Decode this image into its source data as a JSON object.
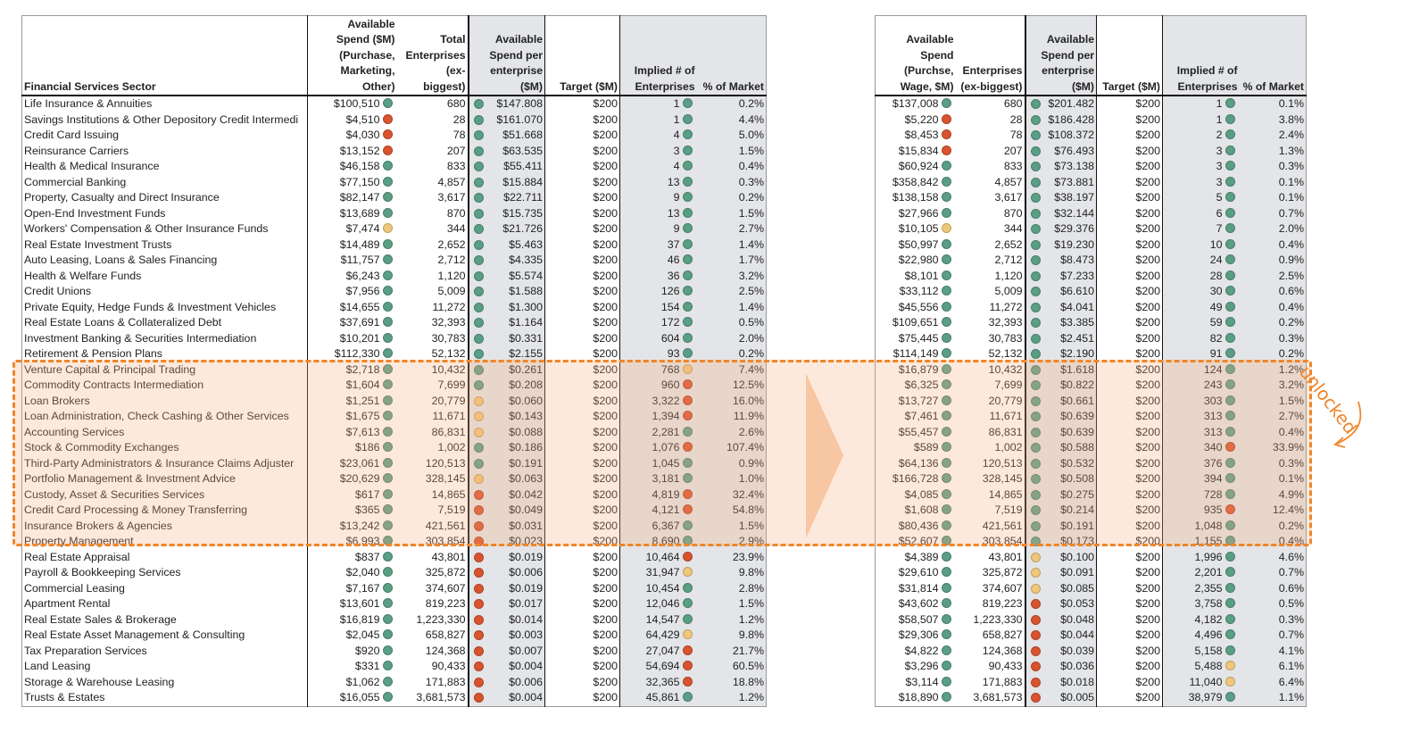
{
  "status_colors": {
    "g": "#5a9e84",
    "y": "#f0c77a",
    "r": "#d9532e"
  },
  "annotation": {
    "unlocked_label": "unlocked"
  },
  "left_table": {
    "headers": {
      "sector": "Financial Services Sector",
      "spend": "Available\nSpend ($M)\n(Purchase,\nMarketing,\nOther)",
      "enterprises": "Total\nEnterprises (ex-\nbiggest)",
      "per_enterprise": "Available\nSpend per\nenterprise\n($M)",
      "target": "Target ($M)",
      "implied": "Implied # of\nEnterprises",
      "pct": "% of Market"
    },
    "sectors": [
      "Life Insurance & Annuities",
      "Savings Institutions & Other Depository Credit Intermedi",
      "Credit Card Issuing",
      "Reinsurance Carriers",
      "Health & Medical Insurance",
      "Commercial Banking",
      "Property, Casualty and Direct Insurance",
      "Open-End Investment Funds",
      "Workers' Compensation & Other Insurance Funds",
      "Real Estate Investment Trusts",
      "Auto Leasing, Loans & Sales Financing",
      "Health & Welfare Funds",
      "Credit Unions",
      "Private Equity, Hedge Funds & Investment Vehicles",
      "Real Estate Loans & Collateralized Debt",
      "Investment Banking & Securities Intermediation",
      "Retirement & Pension Plans",
      "Venture Capital & Principal Trading",
      "Commodity Contracts Intermediation",
      "Loan Brokers",
      "Loan Administration, Check Cashing & Other Services",
      "Accounting Services",
      "Stock & Commodity Exchanges",
      "Third-Party Administrators & Insurance Claims Adjuster",
      "Portfolio Management & Investment Advice",
      "Custody, Asset & Securities Services",
      "Credit Card Processing & Money Transferring",
      "Insurance Brokers & Agencies",
      "Property Management",
      "Real Estate Appraisal",
      "Payroll & Bookkeeping Services",
      "Commercial Leasing",
      "Apartment Rental",
      "Real Estate Sales & Brokerage",
      "Real Estate Asset Management & Consulting",
      "Tax Preparation Services",
      "Land Leasing",
      "Storage & Warehouse Leasing",
      "Trusts & Estates"
    ],
    "rows": [
      [
        "$100,510",
        "g",
        "680",
        "g",
        "$147.808",
        "$200",
        "1",
        "g",
        "0.2%"
      ],
      [
        "$4,510",
        "r",
        "28",
        "g",
        "$161.070",
        "$200",
        "1",
        "g",
        "4.4%"
      ],
      [
        "$4,030",
        "r",
        "78",
        "g",
        "$51.668",
        "$200",
        "4",
        "g",
        "5.0%"
      ],
      [
        "$13,152",
        "r",
        "207",
        "g",
        "$63.535",
        "$200",
        "3",
        "g",
        "1.5%"
      ],
      [
        "$46,158",
        "g",
        "833",
        "g",
        "$55.411",
        "$200",
        "4",
        "g",
        "0.4%"
      ],
      [
        "$77,150",
        "g",
        "4,857",
        "g",
        "$15.884",
        "$200",
        "13",
        "g",
        "0.3%"
      ],
      [
        "$82,147",
        "g",
        "3,617",
        "g",
        "$22.711",
        "$200",
        "9",
        "g",
        "0.2%"
      ],
      [
        "$13,689",
        "g",
        "870",
        "g",
        "$15.735",
        "$200",
        "13",
        "g",
        "1.5%"
      ],
      [
        "$7,474",
        "y",
        "344",
        "g",
        "$21.726",
        "$200",
        "9",
        "g",
        "2.7%"
      ],
      [
        "$14,489",
        "g",
        "2,652",
        "g",
        "$5.463",
        "$200",
        "37",
        "g",
        "1.4%"
      ],
      [
        "$11,757",
        "g",
        "2,712",
        "g",
        "$4.335",
        "$200",
        "46",
        "g",
        "1.7%"
      ],
      [
        "$6,243",
        "g",
        "1,120",
        "g",
        "$5.574",
        "$200",
        "36",
        "g",
        "3.2%"
      ],
      [
        "$7,956",
        "g",
        "5,009",
        "g",
        "$1.588",
        "$200",
        "126",
        "g",
        "2.5%"
      ],
      [
        "$14,655",
        "g",
        "11,272",
        "g",
        "$1.300",
        "$200",
        "154",
        "g",
        "1.4%"
      ],
      [
        "$37,691",
        "g",
        "32,393",
        "g",
        "$1.164",
        "$200",
        "172",
        "g",
        "0.5%"
      ],
      [
        "$10,201",
        "g",
        "30,783",
        "g",
        "$0.331",
        "$200",
        "604",
        "g",
        "2.0%"
      ],
      [
        "$112,330",
        "g",
        "52,132",
        "g",
        "$2.155",
        "$200",
        "93",
        "g",
        "0.2%"
      ],
      [
        "$2,718",
        "g",
        "10,432",
        "g",
        "$0.261",
        "$200",
        "768",
        "y",
        "7.4%"
      ],
      [
        "$1,604",
        "g",
        "7,699",
        "g",
        "$0.208",
        "$200",
        "960",
        "r",
        "12.5%"
      ],
      [
        "$1,251",
        "g",
        "20,779",
        "y",
        "$0.060",
        "$200",
        "3,322",
        "r",
        "16.0%"
      ],
      [
        "$1,675",
        "g",
        "11,671",
        "y",
        "$0.143",
        "$200",
        "1,394",
        "r",
        "11.9%"
      ],
      [
        "$7,613",
        "g",
        "86,831",
        "y",
        "$0.088",
        "$200",
        "2,281",
        "g",
        "2.6%"
      ],
      [
        "$186",
        "g",
        "1,002",
        "g",
        "$0.186",
        "$200",
        "1,076",
        "r",
        "107.4%"
      ],
      [
        "$23,061",
        "g",
        "120,513",
        "g",
        "$0.191",
        "$200",
        "1,045",
        "g",
        "0.9%"
      ],
      [
        "$20,629",
        "g",
        "328,145",
        "y",
        "$0.063",
        "$200",
        "3,181",
        "g",
        "1.0%"
      ],
      [
        "$617",
        "g",
        "14,865",
        "r",
        "$0.042",
        "$200",
        "4,819",
        "r",
        "32.4%"
      ],
      [
        "$365",
        "g",
        "7,519",
        "r",
        "$0.049",
        "$200",
        "4,121",
        "r",
        "54.8%"
      ],
      [
        "$13,242",
        "g",
        "421,561",
        "r",
        "$0.031",
        "$200",
        "6,367",
        "g",
        "1.5%"
      ],
      [
        "$6,993",
        "g",
        "303,854",
        "r",
        "$0.023",
        "$200",
        "8,690",
        "g",
        "2.9%"
      ],
      [
        "$837",
        "g",
        "43,801",
        "r",
        "$0.019",
        "$200",
        "10,464",
        "r",
        "23.9%"
      ],
      [
        "$2,040",
        "g",
        "325,872",
        "r",
        "$0.006",
        "$200",
        "31,947",
        "y",
        "9.8%"
      ],
      [
        "$7,167",
        "g",
        "374,607",
        "r",
        "$0.019",
        "$200",
        "10,454",
        "g",
        "2.8%"
      ],
      [
        "$13,601",
        "g",
        "819,223",
        "r",
        "$0.017",
        "$200",
        "12,046",
        "g",
        "1.5%"
      ],
      [
        "$16,819",
        "g",
        "1,223,330",
        "r",
        "$0.014",
        "$200",
        "14,547",
        "g",
        "1.2%"
      ],
      [
        "$2,045",
        "g",
        "658,827",
        "r",
        "$0.003",
        "$200",
        "64,429",
        "y",
        "9.8%"
      ],
      [
        "$920",
        "g",
        "124,368",
        "r",
        "$0.007",
        "$200",
        "27,047",
        "r",
        "21.7%"
      ],
      [
        "$331",
        "g",
        "90,433",
        "r",
        "$0.004",
        "$200",
        "54,694",
        "r",
        "60.5%"
      ],
      [
        "$1,062",
        "g",
        "171,883",
        "r",
        "$0.006",
        "$200",
        "32,365",
        "r",
        "18.8%"
      ],
      [
        "$16,055",
        "g",
        "3,681,573",
        "r",
        "$0.004",
        "$200",
        "45,861",
        "g",
        "1.2%"
      ]
    ]
  },
  "right_table": {
    "headers": {
      "spend": "Available\nSpend\n(Purchse,\nWage, $M)",
      "enterprises": "Enterprises\n(ex-biggest)",
      "per_enterprise": "Available\nSpend per\nenterprise\n($M)",
      "target": "Target ($M)",
      "implied": "Implied # of\nEnterprises",
      "pct": "% of Market"
    },
    "rows": [
      [
        "$137,008",
        "g",
        "680",
        "g",
        "$201.482",
        "$200",
        "1",
        "g",
        "0.1%"
      ],
      [
        "$5,220",
        "r",
        "28",
        "g",
        "$186.428",
        "$200",
        "1",
        "g",
        "3.8%"
      ],
      [
        "$8,453",
        "r",
        "78",
        "g",
        "$108.372",
        "$200",
        "2",
        "g",
        "2.4%"
      ],
      [
        "$15,834",
        "r",
        "207",
        "g",
        "$76.493",
        "$200",
        "3",
        "g",
        "1.3%"
      ],
      [
        "$60,924",
        "g",
        "833",
        "g",
        "$73.138",
        "$200",
        "3",
        "g",
        "0.3%"
      ],
      [
        "$358,842",
        "g",
        "4,857",
        "g",
        "$73.881",
        "$200",
        "3",
        "g",
        "0.1%"
      ],
      [
        "$138,158",
        "g",
        "3,617",
        "g",
        "$38.197",
        "$200",
        "5",
        "g",
        "0.1%"
      ],
      [
        "$27,966",
        "g",
        "870",
        "g",
        "$32.144",
        "$200",
        "6",
        "g",
        "0.7%"
      ],
      [
        "$10,105",
        "y",
        "344",
        "g",
        "$29.376",
        "$200",
        "7",
        "g",
        "2.0%"
      ],
      [
        "$50,997",
        "g",
        "2,652",
        "g",
        "$19.230",
        "$200",
        "10",
        "g",
        "0.4%"
      ],
      [
        "$22,980",
        "g",
        "2,712",
        "g",
        "$8.473",
        "$200",
        "24",
        "g",
        "0.9%"
      ],
      [
        "$8,101",
        "g",
        "1,120",
        "g",
        "$7.233",
        "$200",
        "28",
        "g",
        "2.5%"
      ],
      [
        "$33,112",
        "g",
        "5,009",
        "g",
        "$6.610",
        "$200",
        "30",
        "g",
        "0.6%"
      ],
      [
        "$45,556",
        "g",
        "11,272",
        "g",
        "$4.041",
        "$200",
        "49",
        "g",
        "0.4%"
      ],
      [
        "$109,651",
        "g",
        "32,393",
        "g",
        "$3.385",
        "$200",
        "59",
        "g",
        "0.2%"
      ],
      [
        "$75,445",
        "g",
        "30,783",
        "g",
        "$2.451",
        "$200",
        "82",
        "g",
        "0.3%"
      ],
      [
        "$114,149",
        "g",
        "52,132",
        "g",
        "$2.190",
        "$200",
        "91",
        "g",
        "0.2%"
      ],
      [
        "$16,879",
        "g",
        "10,432",
        "g",
        "$1.618",
        "$200",
        "124",
        "g",
        "1.2%"
      ],
      [
        "$6,325",
        "g",
        "7,699",
        "g",
        "$0.822",
        "$200",
        "243",
        "g",
        "3.2%"
      ],
      [
        "$13,727",
        "g",
        "20,779",
        "g",
        "$0.661",
        "$200",
        "303",
        "g",
        "1.5%"
      ],
      [
        "$7,461",
        "g",
        "11,671",
        "g",
        "$0.639",
        "$200",
        "313",
        "g",
        "2.7%"
      ],
      [
        "$55,457",
        "g",
        "86,831",
        "g",
        "$0.639",
        "$200",
        "313",
        "g",
        "0.4%"
      ],
      [
        "$589",
        "g",
        "1,002",
        "g",
        "$0.588",
        "$200",
        "340",
        "r",
        "33.9%"
      ],
      [
        "$64,136",
        "g",
        "120,513",
        "g",
        "$0.532",
        "$200",
        "376",
        "g",
        "0.3%"
      ],
      [
        "$166,728",
        "g",
        "328,145",
        "g",
        "$0.508",
        "$200",
        "394",
        "g",
        "0.1%"
      ],
      [
        "$4,085",
        "g",
        "14,865",
        "g",
        "$0.275",
        "$200",
        "728",
        "g",
        "4.9%"
      ],
      [
        "$1,608",
        "g",
        "7,519",
        "g",
        "$0.214",
        "$200",
        "935",
        "r",
        "12.4%"
      ],
      [
        "$80,436",
        "g",
        "421,561",
        "g",
        "$0.191",
        "$200",
        "1,048",
        "g",
        "0.2%"
      ],
      [
        "$52,607",
        "g",
        "303,854",
        "g",
        "$0.173",
        "$200",
        "1,155",
        "g",
        "0.4%"
      ],
      [
        "$4,389",
        "g",
        "43,801",
        "y",
        "$0.100",
        "$200",
        "1,996",
        "g",
        "4.6%"
      ],
      [
        "$29,610",
        "g",
        "325,872",
        "y",
        "$0.091",
        "$200",
        "2,201",
        "g",
        "0.7%"
      ],
      [
        "$31,814",
        "g",
        "374,607",
        "y",
        "$0.085",
        "$200",
        "2,355",
        "g",
        "0.6%"
      ],
      [
        "$43,602",
        "g",
        "819,223",
        "r",
        "$0.053",
        "$200",
        "3,758",
        "g",
        "0.5%"
      ],
      [
        "$58,507",
        "g",
        "1,223,330",
        "r",
        "$0.048",
        "$200",
        "4,182",
        "g",
        "0.3%"
      ],
      [
        "$29,306",
        "g",
        "658,827",
        "r",
        "$0.044",
        "$200",
        "4,496",
        "g",
        "0.7%"
      ],
      [
        "$4,822",
        "g",
        "124,368",
        "r",
        "$0.039",
        "$200",
        "5,158",
        "g",
        "4.1%"
      ],
      [
        "$3,296",
        "g",
        "90,433",
        "r",
        "$0.036",
        "$200",
        "5,488",
        "y",
        "6.1%"
      ],
      [
        "$3,114",
        "g",
        "171,883",
        "r",
        "$0.018",
        "$200",
        "11,040",
        "y",
        "6.4%"
      ],
      [
        "$18,890",
        "g",
        "3,681,573",
        "r",
        "$0.005",
        "$200",
        "38,979",
        "g",
        "1.1%"
      ]
    ]
  }
}
